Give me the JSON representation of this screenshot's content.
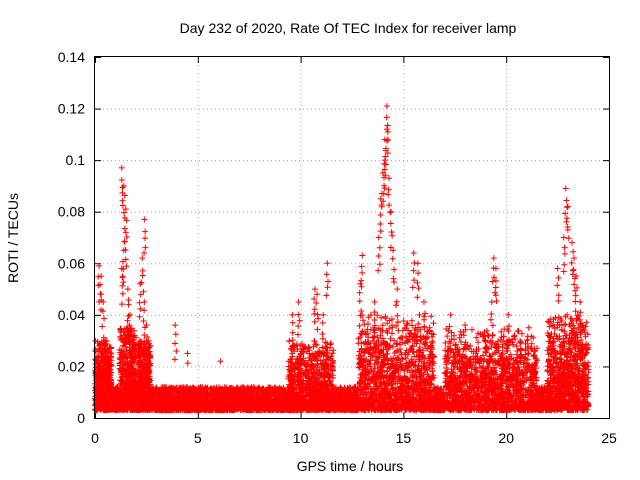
{
  "chart_data": {
    "type": "scatter",
    "title": "Day 232 of 2020, Rate Of TEC Index for receiver lamp",
    "xlabel": "GPS time / hours",
    "ylabel": "ROTI / TECUs",
    "xlim": [
      0,
      25
    ],
    "ylim": [
      0,
      0.14
    ],
    "xticks": [
      0,
      5,
      10,
      15,
      20,
      25
    ],
    "yticks": [
      0,
      0.02,
      0.04,
      0.06,
      0.08,
      0.1,
      0.12,
      0.14
    ],
    "xtick_labels": [
      "0",
      "5",
      "10",
      "15",
      "20",
      "25"
    ],
    "ytick_labels": [
      "0",
      "0.02",
      "0.04",
      "0.06",
      "0.08",
      "0.1",
      "0.12",
      "0.14"
    ],
    "grid": true,
    "legend": "none",
    "marker": "plus",
    "color": "#ff0000",
    "x_extent": [
      0,
      24
    ],
    "baseline_band": [
      0.003,
      0.02
    ],
    "spikes": [
      {
        "x": 0.2,
        "y": 0.059
      },
      {
        "x": 0.3,
        "y": 0.055
      },
      {
        "x": 0.4,
        "y": 0.045
      },
      {
        "x": 0.5,
        "y": 0.03
      },
      {
        "x": 0.6,
        "y": 0.024
      },
      {
        "x": 1.3,
        "y": 0.097
      },
      {
        "x": 1.4,
        "y": 0.09
      },
      {
        "x": 1.5,
        "y": 0.081
      },
      {
        "x": 1.5,
        "y": 0.072
      },
      {
        "x": 1.4,
        "y": 0.065
      },
      {
        "x": 1.3,
        "y": 0.058
      },
      {
        "x": 1.6,
        "y": 0.05
      },
      {
        "x": 1.7,
        "y": 0.04
      },
      {
        "x": 1.8,
        "y": 0.03
      },
      {
        "x": 2.2,
        "y": 0.052
      },
      {
        "x": 2.4,
        "y": 0.077
      },
      {
        "x": 2.3,
        "y": 0.062
      },
      {
        "x": 2.4,
        "y": 0.045
      },
      {
        "x": 2.5,
        "y": 0.036
      },
      {
        "x": 2.6,
        "y": 0.025
      },
      {
        "x": 3.9,
        "y": 0.036
      },
      {
        "x": 4.5,
        "y": 0.025
      },
      {
        "x": 6.1,
        "y": 0.022
      },
      {
        "x": 9.6,
        "y": 0.04
      },
      {
        "x": 9.9,
        "y": 0.045
      },
      {
        "x": 10.7,
        "y": 0.05
      },
      {
        "x": 10.8,
        "y": 0.048
      },
      {
        "x": 11.1,
        "y": 0.04
      },
      {
        "x": 11.3,
        "y": 0.06
      },
      {
        "x": 12.9,
        "y": 0.052
      },
      {
        "x": 13.0,
        "y": 0.063
      },
      {
        "x": 13.6,
        "y": 0.045
      },
      {
        "x": 13.8,
        "y": 0.07
      },
      {
        "x": 13.9,
        "y": 0.085
      },
      {
        "x": 14.0,
        "y": 0.095
      },
      {
        "x": 14.1,
        "y": 0.108
      },
      {
        "x": 14.2,
        "y": 0.121
      },
      {
        "x": 14.2,
        "y": 0.112
      },
      {
        "x": 14.1,
        "y": 0.1
      },
      {
        "x": 14.3,
        "y": 0.093
      },
      {
        "x": 14.4,
        "y": 0.08
      },
      {
        "x": 14.5,
        "y": 0.065
      },
      {
        "x": 14.7,
        "y": 0.05
      },
      {
        "x": 15.5,
        "y": 0.064
      },
      {
        "x": 15.7,
        "y": 0.06
      },
      {
        "x": 16.0,
        "y": 0.045
      },
      {
        "x": 17.3,
        "y": 0.04
      },
      {
        "x": 18.0,
        "y": 0.036
      },
      {
        "x": 19.4,
        "y": 0.062
      },
      {
        "x": 19.5,
        "y": 0.058
      },
      {
        "x": 19.3,
        "y": 0.045
      },
      {
        "x": 20.1,
        "y": 0.04
      },
      {
        "x": 21.1,
        "y": 0.035
      },
      {
        "x": 22.5,
        "y": 0.058
      },
      {
        "x": 22.9,
        "y": 0.089
      },
      {
        "x": 23.0,
        "y": 0.082
      },
      {
        "x": 22.8,
        "y": 0.07
      },
      {
        "x": 23.2,
        "y": 0.068
      },
      {
        "x": 23.3,
        "y": 0.062
      },
      {
        "x": 23.4,
        "y": 0.055
      },
      {
        "x": 23.6,
        "y": 0.045
      },
      {
        "x": 23.5,
        "y": 0.035
      }
    ],
    "activity_windows": [
      {
        "x": [
          0.0,
          0.8
        ],
        "ymax": 0.03
      },
      {
        "x": [
          1.2,
          2.0
        ],
        "ymax": 0.035
      },
      {
        "x": [
          2.1,
          2.7
        ],
        "ymax": 0.03
      },
      {
        "x": [
          9.4,
          11.6
        ],
        "ymax": 0.03
      },
      {
        "x": [
          12.8,
          16.5
        ],
        "ymax": 0.04
      },
      {
        "x": [
          17.0,
          21.5
        ],
        "ymax": 0.035
      },
      {
        "x": [
          22.0,
          24.0
        ],
        "ymax": 0.04
      }
    ]
  }
}
